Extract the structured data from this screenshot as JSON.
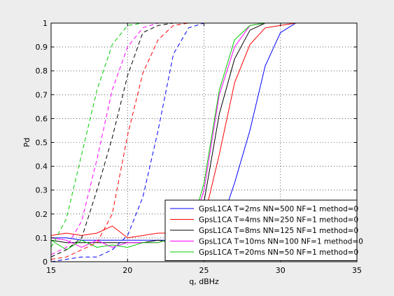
{
  "chart_data": {
    "type": "line",
    "xlabel": "q, dBHz",
    "ylabel": "Pd",
    "xlim": [
      15,
      35
    ],
    "ylim": [
      0,
      1
    ],
    "xticks": [
      15,
      20,
      25,
      30,
      35
    ],
    "yticks": [
      0,
      0.1,
      0.2,
      0.3,
      0.4,
      0.5,
      0.6,
      0.7,
      0.8,
      0.9,
      1
    ],
    "grid": true,
    "legend_position": "bottom-right",
    "colors": {
      "T2": "#0000ff",
      "T4": "#ff0000",
      "T8": "#000000",
      "T10": "#ff00ff",
      "T20": "#00cc00",
      "background": "#ffffff",
      "figure": "#ededed"
    },
    "x": [
      15,
      16,
      17,
      18,
      19,
      20,
      21,
      22,
      23,
      24,
      25,
      26,
      27,
      28,
      29,
      30,
      31,
      32,
      33,
      34,
      35
    ],
    "series": [
      {
        "name": "GpsL1CA T=2ms NN=500 NF=1 method=0",
        "color_key": "T2",
        "style": "solid",
        "values": [
          0.1,
          0.1,
          0.09,
          0.09,
          0.09,
          0.09,
          0.09,
          0.09,
          0.09,
          0.09,
          0.1,
          0.14,
          0.33,
          0.55,
          0.82,
          0.96,
          1,
          1,
          1,
          1,
          1
        ]
      },
      {
        "name": "GpsL1CA T=4ms NN=250 NF=1 method=0",
        "color_key": "T4",
        "style": "solid",
        "values": [
          0.11,
          0.12,
          0.11,
          0.12,
          0.15,
          0.1,
          0.11,
          0.12,
          0.12,
          0.13,
          0.18,
          0.45,
          0.75,
          0.91,
          0.98,
          0.99,
          1,
          1,
          1,
          1,
          1
        ]
      },
      {
        "name": "GpsL1CA T=8ms NN=125 NF=1 method=0",
        "color_key": "T8",
        "style": "solid",
        "values": [
          0.09,
          0.08,
          0.08,
          0.08,
          0.08,
          0.08,
          0.08,
          0.09,
          0.08,
          0.09,
          0.25,
          0.62,
          0.85,
          0.97,
          1,
          1,
          1,
          1,
          1,
          1,
          1
        ]
      },
      {
        "name": "GpsL1CA T=10ms NN=100 NF=1 method=0",
        "color_key": "T10",
        "style": "solid",
        "values": [
          0.1,
          0.09,
          0.06,
          0.09,
          0.06,
          0.08,
          0.08,
          0.08,
          0.1,
          0.09,
          0.3,
          0.7,
          0.9,
          0.99,
          1,
          1,
          1,
          1,
          1,
          1,
          1
        ]
      },
      {
        "name": "GpsL1CA T=20ms NN=50 NF=1 method=0",
        "color_key": "T20",
        "style": "solid",
        "values": [
          0.09,
          0.05,
          0.09,
          0.06,
          0.07,
          0.06,
          0.08,
          0.08,
          0.1,
          0.1,
          0.33,
          0.72,
          0.93,
          0.99,
          1,
          1,
          1,
          1,
          1,
          1,
          1
        ]
      },
      {
        "name": "",
        "color_key": "T2",
        "style": "dashed",
        "values": [
          0,
          0.01,
          0.02,
          0.02,
          0.05,
          0.11,
          0.27,
          0.55,
          0.87,
          0.98,
          1,
          1,
          1,
          1,
          1,
          1,
          1,
          1,
          1,
          1,
          1
        ]
      },
      {
        "name": "",
        "color_key": "T4",
        "style": "dashed",
        "values": [
          0.01,
          0.02,
          0.05,
          0.08,
          0.2,
          0.53,
          0.79,
          0.93,
          0.99,
          1,
          1,
          1,
          1,
          1,
          1,
          1,
          1,
          1,
          1,
          1,
          1
        ]
      },
      {
        "name": "",
        "color_key": "T8",
        "style": "dashed",
        "values": [
          0.02,
          0.05,
          0.1,
          0.3,
          0.52,
          0.78,
          0.96,
          0.99,
          1,
          1,
          1,
          1,
          1,
          1,
          1,
          1,
          1,
          1,
          1,
          1,
          1
        ]
      },
      {
        "name": "",
        "color_key": "T10",
        "style": "dashed",
        "values": [
          0.03,
          0.06,
          0.17,
          0.43,
          0.72,
          0.9,
          0.98,
          1,
          1,
          1,
          1,
          1,
          1,
          1,
          1,
          1,
          1,
          1,
          1,
          1,
          1
        ]
      },
      {
        "name": "",
        "color_key": "T20",
        "style": "dashed",
        "values": [
          0.06,
          0.18,
          0.45,
          0.72,
          0.91,
          0.99,
          1,
          1,
          1,
          1,
          1,
          1,
          1,
          1,
          1,
          1,
          1,
          1,
          1,
          1,
          1
        ]
      }
    ]
  }
}
